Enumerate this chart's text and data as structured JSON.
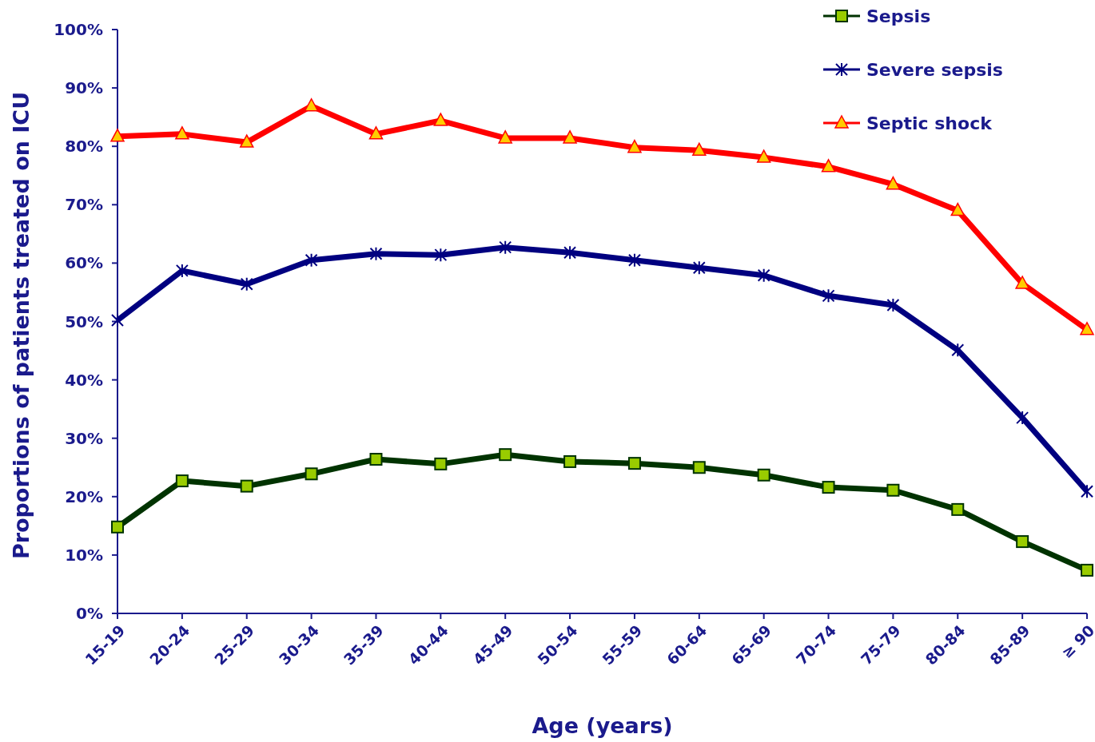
{
  "chart_data": {
    "type": "line",
    "xlabel": "Age (years)",
    "ylabel": "Proportions of patients treated on ICU",
    "categories": [
      "15-19",
      "20-24",
      "25-29",
      "30-34",
      "35-39",
      "40-44",
      "45-49",
      "50-54",
      "55-59",
      "60-64",
      "65-69",
      "70-74",
      "75-79",
      "80-84",
      "85-89",
      "≥ 90"
    ],
    "series": [
      {
        "name": "Sepsis",
        "color": "#003300",
        "marker": "square",
        "values": [
          14.8,
          22.7,
          21.8,
          23.9,
          26.4,
          25.6,
          27.2,
          26.0,
          25.7,
          25.0,
          23.7,
          21.6,
          21.1,
          17.8,
          12.3,
          7.4
        ]
      },
      {
        "name": "Severe sepsis",
        "color": "#000080",
        "marker": "cross",
        "values": [
          50.2,
          58.7,
          56.4,
          60.5,
          61.6,
          61.4,
          62.7,
          61.8,
          60.5,
          59.2,
          57.9,
          54.4,
          52.8,
          45.1,
          33.5,
          20.9
        ]
      },
      {
        "name": "Septic shock",
        "color": "#ff0000",
        "marker": "triangle",
        "values": [
          81.7,
          82.1,
          80.7,
          86.9,
          82.1,
          84.4,
          81.4,
          81.4,
          79.8,
          79.3,
          78.1,
          76.5,
          73.5,
          69.0,
          56.5,
          48.6
        ]
      }
    ],
    "ylim": [
      0,
      100
    ],
    "yticks": [
      {
        "value": 0,
        "label": "0%"
      },
      {
        "value": 10,
        "label": "10%"
      },
      {
        "value": 20,
        "label": "20%"
      },
      {
        "value": 30,
        "label": "30%"
      },
      {
        "value": 40,
        "label": "40%"
      },
      {
        "value": 50,
        "label": "50%"
      },
      {
        "value": 60,
        "label": "60%"
      },
      {
        "value": 70,
        "label": "70%"
      },
      {
        "value": 80,
        "label": "80%"
      },
      {
        "value": 90,
        "label": "90%"
      },
      {
        "value": 100,
        "label": "100%"
      }
    ],
    "grid": false,
    "legend": "top right",
    "line_style": "solid"
  }
}
